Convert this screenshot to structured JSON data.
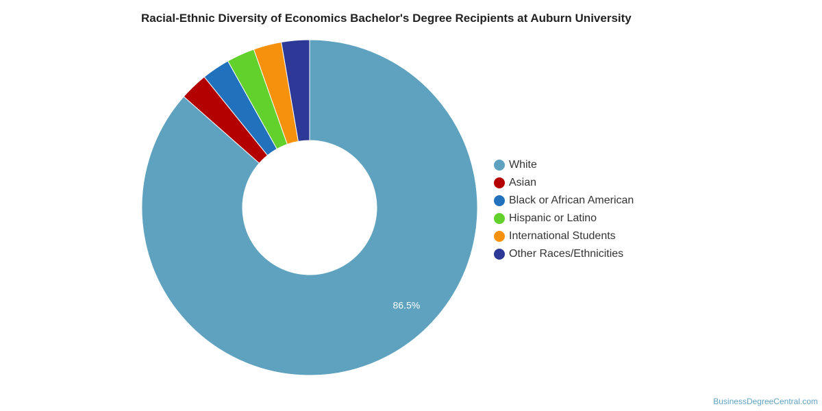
{
  "chart_data": {
    "type": "pie",
    "variant": "donut",
    "title": "Racial-Ethnic Diversity of Economics Bachelor's Degree Recipients at Auburn University",
    "categories": [
      "White",
      "Asian",
      "Black or African American",
      "Hispanic or Latino",
      "International Students",
      "Other Races/Ethnicities"
    ],
    "values": [
      86.5,
      2.7,
      2.7,
      2.7,
      2.7,
      2.7
    ],
    "colors": [
      "#5ea2bf",
      "#b30000",
      "#2271bd",
      "#62d12c",
      "#f6910e",
      "#2d3996"
    ],
    "data_labels": [
      "86.5%",
      "",
      "",
      "",
      "",
      ""
    ],
    "legend_position": "right"
  },
  "credit": "BusinessDegreeCentral.com"
}
